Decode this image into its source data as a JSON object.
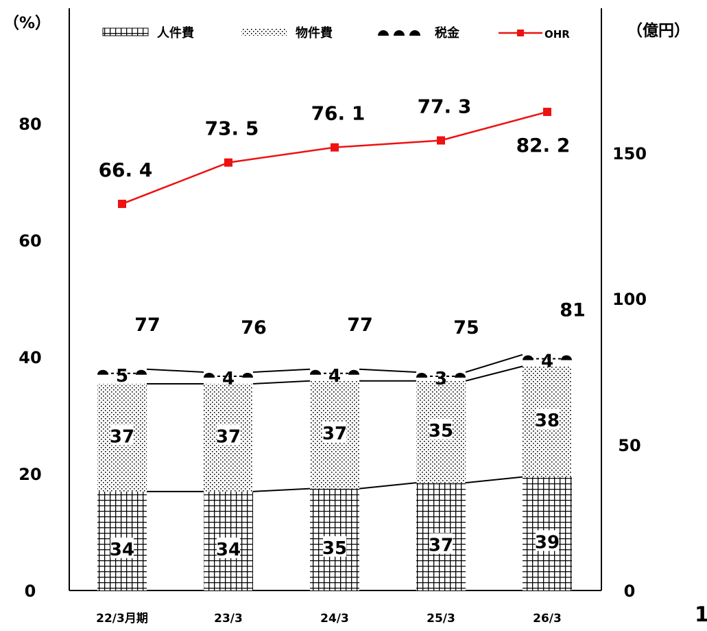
{
  "chart_data": {
    "type": "bar",
    "left_axis_unit": "（%）",
    "right_axis_unit": "（億円）",
    "categories": [
      "22/3月期",
      "23/3",
      "24/3",
      "25/3",
      "26/3"
    ],
    "y_left": {
      "ticks": [
        0,
        20,
        40,
        60,
        80
      ],
      "range": [
        0,
        100
      ]
    },
    "y_right": {
      "ticks": [
        0,
        50,
        100,
        150
      ],
      "range": [
        0,
        200
      ]
    },
    "series": [
      {
        "name": "人件費",
        "kind": "bar",
        "axis": "right",
        "values": [
          34,
          34,
          35,
          37,
          39
        ],
        "labels": [
          "34",
          "34",
          "35",
          "37",
          "39"
        ]
      },
      {
        "name": "物件費",
        "kind": "bar",
        "axis": "right",
        "values": [
          37,
          37,
          37,
          35,
          38
        ],
        "labels": [
          "37",
          "37",
          "37",
          "35",
          "38"
        ]
      },
      {
        "name": "税金",
        "kind": "bar",
        "axis": "right",
        "values": [
          5,
          4,
          4,
          3,
          4
        ],
        "labels": [
          "5",
          "4",
          "4",
          "3",
          "4"
        ]
      },
      {
        "name": "OHR",
        "kind": "line",
        "axis": "left",
        "color": "#ee1111",
        "values": [
          66.4,
          73.5,
          76.1,
          77.3,
          82.2
        ],
        "labels": [
          "66. 4",
          "73. 5",
          "76. 1",
          "77. 3",
          "82. 2"
        ]
      }
    ],
    "totals": {
      "values": [
        77,
        76,
        77,
        75,
        81
      ],
      "labels": [
        "77",
        "76",
        "77",
        "75",
        "81"
      ]
    },
    "legend_placement": "top",
    "grid": false
  },
  "corner_mark": "1"
}
